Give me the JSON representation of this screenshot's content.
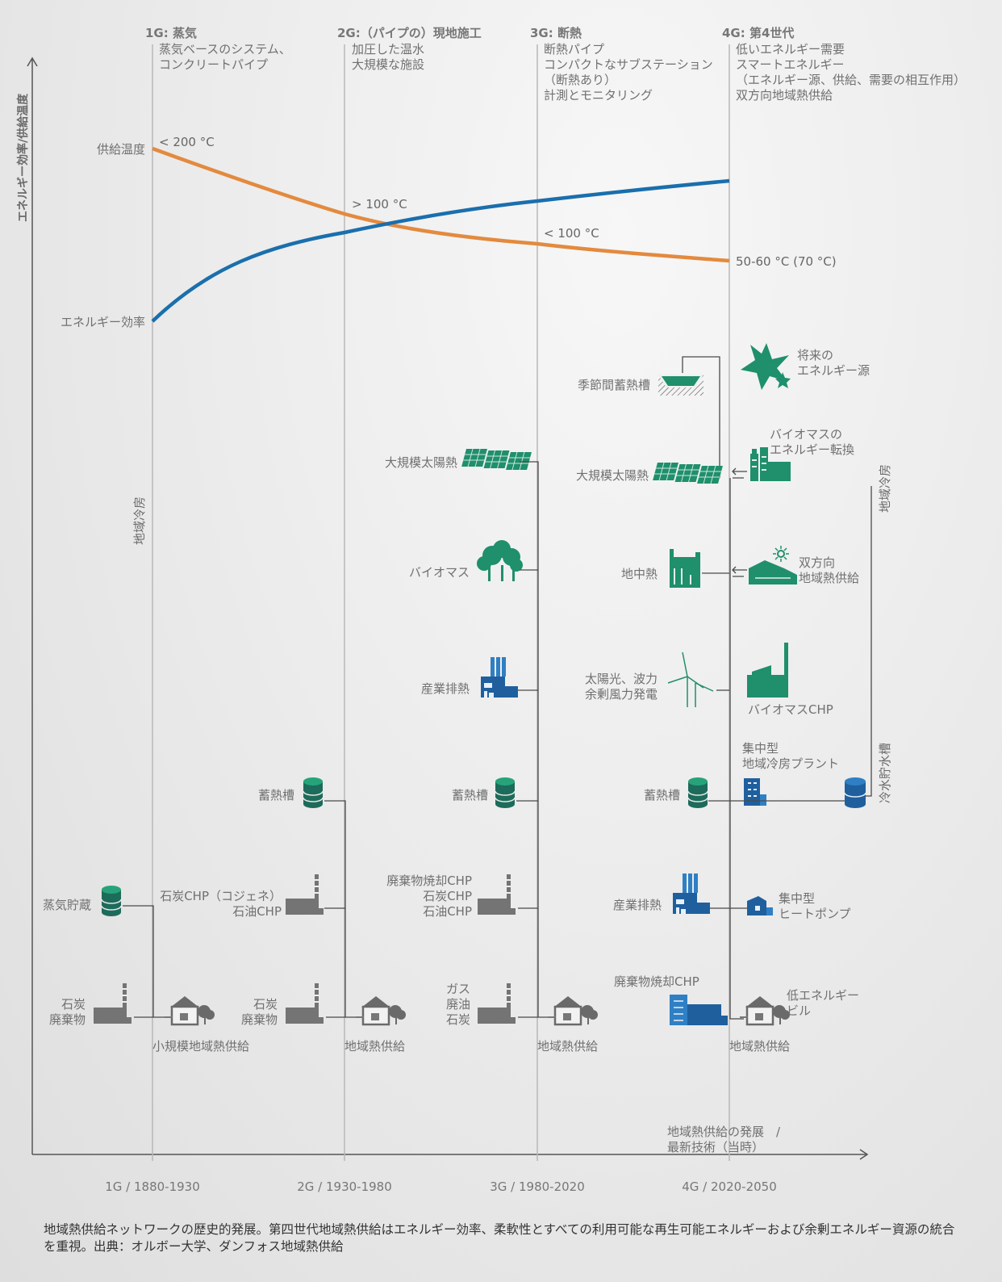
{
  "y_axis_label": "エネルギー効率/供給温度",
  "generations": [
    {
      "title": "1G: 蒸気",
      "desc": [
        "蒸気ベースのシステム、",
        "コンクリートパイプ"
      ]
    },
    {
      "title": "2G:（パイプの）現地施工",
      "desc": [
        "加圧した温水",
        "大規模な施設"
      ]
    },
    {
      "title": "3G: 断熱",
      "desc": [
        "断熱パイプ",
        "コンパクトなサブステーション",
        "（断熱あり）",
        "計測とモニタリング"
      ]
    },
    {
      "title": "4G: 第4世代",
      "desc": [
        "低いエネルギー需要",
        "スマートエネルギー",
        "（エネルギー源、供給、需要の相互作用）",
        "双方向地域熱供給"
      ]
    }
  ],
  "curves": {
    "supply_temp_label": "供給温度",
    "efficiency_label": "エネルギー効率",
    "temps": [
      "< 200 °C",
      "> 100 °C",
      "< 100 °C",
      "50-60 °C (70 °C)"
    ],
    "supply_color": "#e38a3e",
    "efficiency_color": "#1a6fad"
  },
  "x_ticks": [
    "1G / 1880-1930",
    "2G / 1930-1980",
    "3G / 1980-2020",
    "4G / 2020-2050"
  ],
  "x_axis_label": [
    "地域熱供給の発展　/",
    "最新技術（当時）"
  ],
  "district_cooling_1g": "地域冷房",
  "district_cooling_4g": "地域冷房",
  "cold_storage": "冷水貯水槽",
  "g1": {
    "steam_storage": "蒸気貯蔵",
    "coal_waste": [
      "石炭",
      "廃棄物"
    ],
    "network": "小規模地域熱供給"
  },
  "g2": {
    "storage": "蓄熱槽",
    "chp": [
      "石炭CHP（コジェネ）",
      "石油CHP"
    ],
    "coal_waste": [
      "石炭",
      "廃棄物"
    ],
    "network": "地域熱供給"
  },
  "g3": {
    "solar": "大規模太陽熱",
    "biomass": "バイオマス",
    "industrial": "産業排熱",
    "storage": "蓄熱槽",
    "chp": [
      "廃棄物焼却CHP",
      "石炭CHP",
      "石油CHP"
    ],
    "fuels": [
      "ガス",
      "廃油",
      "石炭"
    ],
    "network": "地域熱供給"
  },
  "g4": {
    "seasonal": "季節間蓄熱槽",
    "future": [
      "将来の",
      "エネルギー源"
    ],
    "solar": "大規模太陽熱",
    "biomass_conv": [
      "バイオマスの",
      "エネルギー転換"
    ],
    "geothermal": "地中熱",
    "bidirectional": [
      "双方向",
      "地域熱供給"
    ],
    "wind": [
      "太陽光、波力",
      "余剰風力発電"
    ],
    "biomass_chp": "バイオマスCHP",
    "central_cooling": [
      "集中型",
      "地域冷房プラント"
    ],
    "storage": "蓄熱槽",
    "industrial": "産業排熱",
    "heat_pump": [
      "集中型",
      "ヒートポンプ"
    ],
    "waste_chp": "廃棄物焼却CHP",
    "low_energy": [
      "低エネルギー",
      "ビル"
    ],
    "network": "地域熱供給"
  },
  "caption": "地域熱供給ネットワークの歴史的発展。第四世代地域熱供給はエネルギー効率、柔軟性とすべての利用可能な再生可能エネルギーおよび余剰エネルギー資源の統合を重視。出典：オルボー大学、ダンフォス地域熱供給"
}
